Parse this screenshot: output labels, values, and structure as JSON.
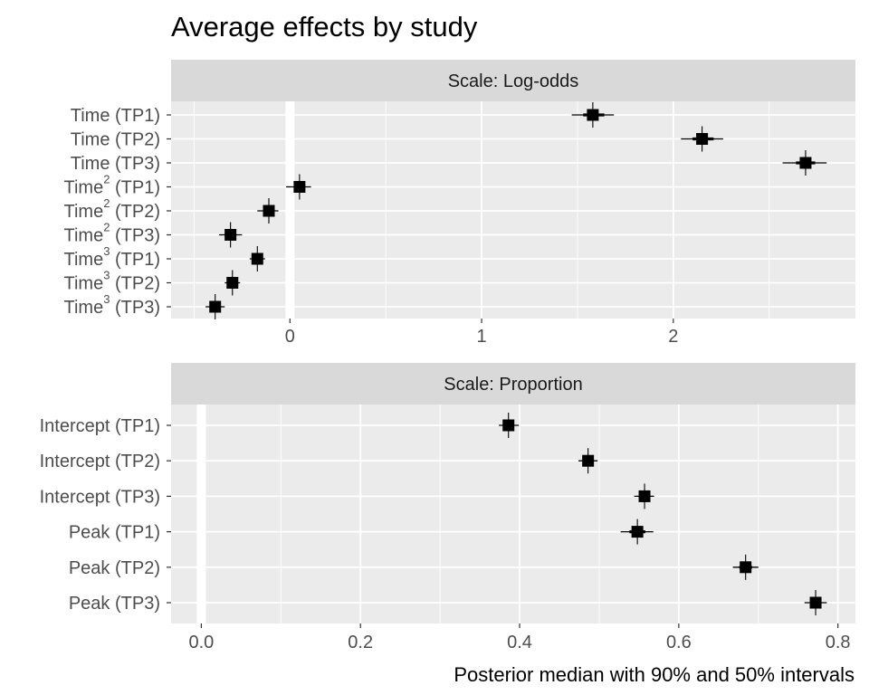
{
  "title": "Average effects by study",
  "xlabel": "Posterior median with 90% and 50% intervals",
  "colors": {
    "panel_bg": "#EBEBEB",
    "strip_bg": "#D9D9D9",
    "grid": "#FFFFFF",
    "mark": "#000000"
  },
  "chart_data": [
    {
      "type": "scatter",
      "facet": "Scale: Log-odds",
      "xlim": [
        -0.62,
        2.95
      ],
      "xticks": [
        0,
        1,
        2
      ],
      "xtick_labels": [
        "0",
        "1",
        "2"
      ],
      "reference_line": 0,
      "rows": [
        {
          "term": "Time",
          "sup": "",
          "tp": "(TP1)",
          "median": 1.58,
          "i50": [
            1.53,
            1.64
          ],
          "i90": [
            1.47,
            1.69
          ]
        },
        {
          "term": "Time",
          "sup": "",
          "tp": "(TP2)",
          "median": 2.15,
          "i50": [
            2.1,
            2.21
          ],
          "i90": [
            2.04,
            2.26
          ]
        },
        {
          "term": "Time",
          "sup": "",
          "tp": "(TP3)",
          "median": 2.69,
          "i50": [
            2.64,
            2.74
          ],
          "i90": [
            2.57,
            2.8
          ]
        },
        {
          "term": "Time",
          "sup": "2",
          "tp": "(TP1)",
          "median": 0.05,
          "i50": [
            0.02,
            0.08
          ],
          "i90": [
            -0.02,
            0.11
          ]
        },
        {
          "term": "Time",
          "sup": "2",
          "tp": "(TP2)",
          "median": -0.11,
          "i50": [
            -0.14,
            -0.08
          ],
          "i90": [
            -0.17,
            -0.06
          ]
        },
        {
          "term": "Time",
          "sup": "2",
          "tp": "(TP3)",
          "median": -0.31,
          "i50": [
            -0.34,
            -0.28
          ],
          "i90": [
            -0.37,
            -0.25
          ]
        },
        {
          "term": "Time",
          "sup": "3",
          "tp": "(TP1)",
          "median": -0.17,
          "i50": [
            -0.19,
            -0.15
          ],
          "i90": [
            -0.21,
            -0.13
          ]
        },
        {
          "term": "Time",
          "sup": "3",
          "tp": "(TP2)",
          "median": -0.3,
          "i50": [
            -0.32,
            -0.28
          ],
          "i90": [
            -0.34,
            -0.26
          ]
        },
        {
          "term": "Time",
          "sup": "3",
          "tp": "(TP3)",
          "median": -0.39,
          "i50": [
            -0.41,
            -0.37
          ],
          "i90": [
            -0.44,
            -0.34
          ]
        }
      ]
    },
    {
      "type": "scatter",
      "facet": "Scale: Proportion",
      "xlim": [
        -0.038,
        0.822
      ],
      "xticks": [
        0.0,
        0.2,
        0.4,
        0.6,
        0.8
      ],
      "xtick_labels": [
        "0.0",
        "0.2",
        "0.4",
        "0.6",
        "0.8"
      ],
      "reference_line": 0,
      "rows": [
        {
          "term": "Intercept",
          "sup": "",
          "tp": "(TP1)",
          "median": 0.386,
          "i50": [
            0.38,
            0.392
          ],
          "i90": [
            0.374,
            0.399
          ]
        },
        {
          "term": "Intercept",
          "sup": "",
          "tp": "(TP2)",
          "median": 0.486,
          "i50": [
            0.48,
            0.492
          ],
          "i90": [
            0.474,
            0.498
          ]
        },
        {
          "term": "Intercept",
          "sup": "",
          "tp": "(TP3)",
          "median": 0.557,
          "i50": [
            0.55,
            0.563
          ],
          "i90": [
            0.544,
            0.569
          ]
        },
        {
          "term": "Peak",
          "sup": "",
          "tp": "(TP1)",
          "median": 0.548,
          "i50": [
            0.538,
            0.558
          ],
          "i90": [
            0.527,
            0.568
          ]
        },
        {
          "term": "Peak",
          "sup": "",
          "tp": "(TP2)",
          "median": 0.684,
          "i50": [
            0.676,
            0.692
          ],
          "i90": [
            0.668,
            0.7
          ]
        },
        {
          "term": "Peak",
          "sup": "",
          "tp": "(TP3)",
          "median": 0.772,
          "i50": [
            0.765,
            0.779
          ],
          "i90": [
            0.758,
            0.786
          ]
        }
      ]
    }
  ]
}
